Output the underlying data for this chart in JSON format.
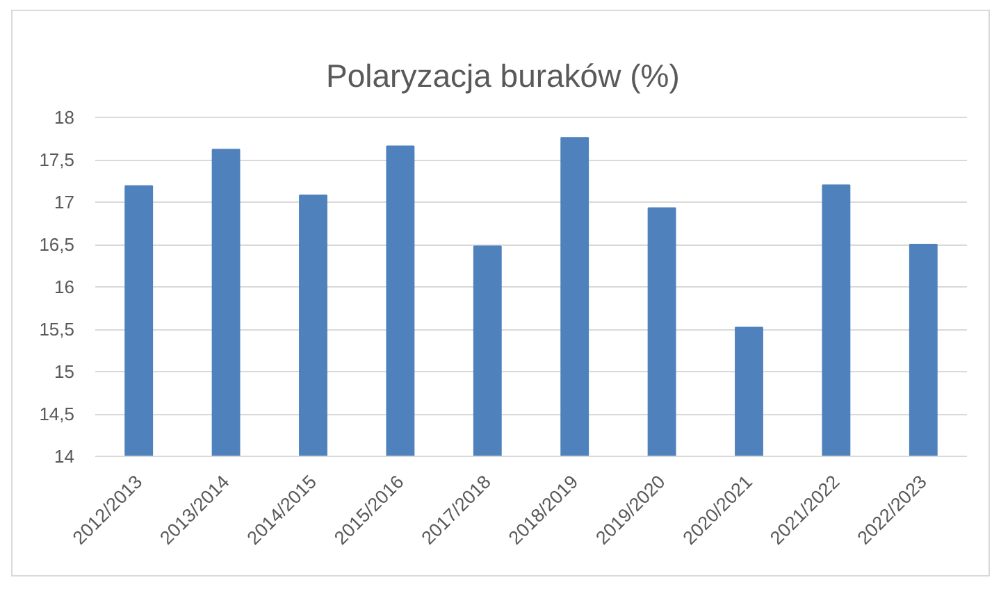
{
  "chart_data": {
    "type": "bar",
    "title": "Polaryzacja buraków (%)",
    "categories": [
      "2012/2013",
      "2013/2014",
      "2014/2015",
      "2015/2016",
      "2017/2018",
      "2018/2019",
      "2019/2020",
      "2020/2021",
      "2021/2022",
      "2022/2023"
    ],
    "values": [
      17.19,
      17.62,
      17.08,
      17.66,
      16.48,
      17.76,
      16.93,
      15.52,
      17.2,
      16.5
    ],
    "color": "#4f81bd",
    "ylim": [
      14,
      18
    ],
    "yticks": [
      14,
      {
        "value": 14.5,
        "label": "14,5"
      },
      15,
      {
        "value": 15.5,
        "label": "15,5"
      },
      16,
      {
        "value": 16.5,
        "label": "16,5"
      },
      17,
      {
        "value": 17.5,
        "label": "17,5"
      },
      18
    ],
    "grid": "y"
  }
}
